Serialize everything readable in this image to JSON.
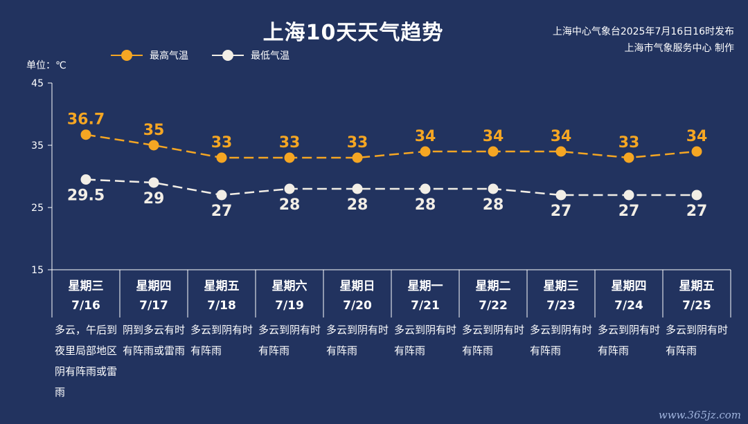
{
  "title": "上海10天天气趋势",
  "issuer_line1": "上海中心气象台2025年7月16日16时发布",
  "issuer_line2": "上海市气象服务中心 制作",
  "unit_label": "单位：℃",
  "watermark": "www.365jz.com",
  "colors": {
    "background": "#22335f",
    "high": "#f5a623",
    "low": "#f2eee6",
    "axis": "#ffffff"
  },
  "chart_data": {
    "type": "line",
    "x": [
      "7/16",
      "7/17",
      "7/18",
      "7/19",
      "7/20",
      "7/21",
      "7/22",
      "7/23",
      "7/24",
      "7/25"
    ],
    "ylim": [
      15,
      45
    ],
    "yticks": [
      15,
      25,
      35,
      45
    ],
    "legend_placement": "top-left",
    "series": [
      {
        "name": "最高气温",
        "values": [
          36.7,
          35,
          33,
          33,
          33,
          34,
          34,
          34,
          33,
          34
        ],
        "labels": [
          "36.7",
          "35",
          "33",
          "33",
          "33",
          "34",
          "34",
          "34",
          "33",
          "34"
        ],
        "color": "#f5a623"
      },
      {
        "name": "最低气温",
        "values": [
          29.5,
          29,
          27,
          28,
          28,
          28,
          28,
          27,
          27,
          27
        ],
        "labels": [
          "29.5",
          "29",
          "27",
          "28",
          "28",
          "28",
          "28",
          "27",
          "27",
          "27"
        ],
        "color": "#f2eee6"
      }
    ]
  },
  "days": [
    {
      "weekday": "星期三",
      "date": "7/16",
      "weather": "多云，午后到夜里局部地区阴有阵雨或雷雨"
    },
    {
      "weekday": "星期四",
      "date": "7/17",
      "weather": "阴到多云有时有阵雨或雷雨"
    },
    {
      "weekday": "星期五",
      "date": "7/18",
      "weather": "多云到阴有时有阵雨"
    },
    {
      "weekday": "星期六",
      "date": "7/19",
      "weather": "多云到阴有时有阵雨"
    },
    {
      "weekday": "星期日",
      "date": "7/20",
      "weather": "多云到阴有时有阵雨"
    },
    {
      "weekday": "星期一",
      "date": "7/21",
      "weather": "多云到阴有时有阵雨"
    },
    {
      "weekday": "星期二",
      "date": "7/22",
      "weather": "多云到阴有时有阵雨"
    },
    {
      "weekday": "星期三",
      "date": "7/23",
      "weather": "多云到阴有时有阵雨"
    },
    {
      "weekday": "星期四",
      "date": "7/24",
      "weather": "多云到阴有时有阵雨"
    },
    {
      "weekday": "星期五",
      "date": "7/25",
      "weather": "多云到阴有时有阵雨"
    }
  ]
}
